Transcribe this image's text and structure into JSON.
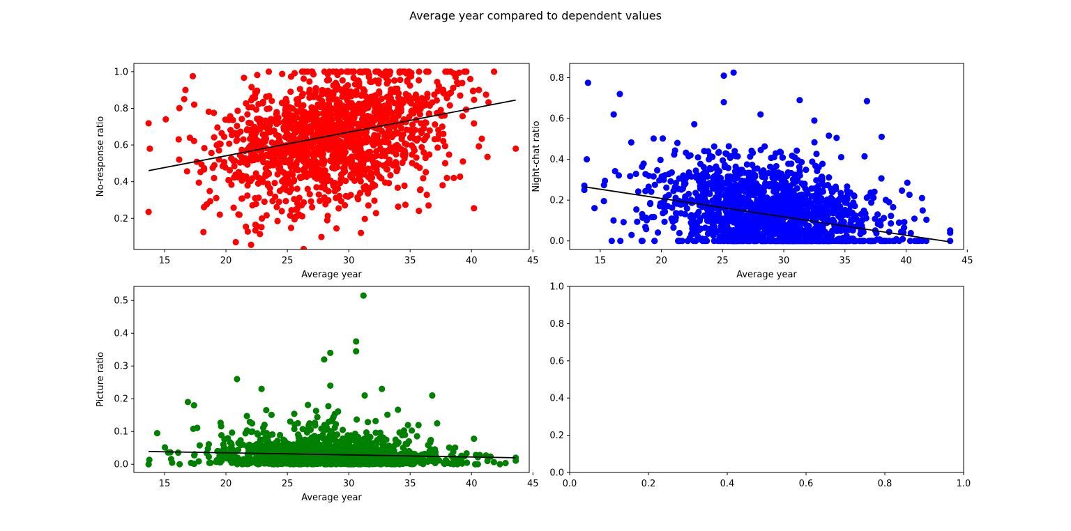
{
  "figure": {
    "suptitle": "Average year compared to dependent values"
  },
  "chart_data": [
    {
      "type": "scatter",
      "panel": "top-left",
      "title": "",
      "xlabel": "Average year",
      "ylabel": "No-response ratio",
      "xlim": [
        12.5,
        44.7
      ],
      "ylim": [
        0.03,
        1.045
      ],
      "xticks": [
        15,
        20,
        25,
        30,
        35,
        40,
        45
      ],
      "yticks": [
        0.2,
        0.4,
        0.6,
        0.8,
        1.0
      ],
      "point_color": "#ff0000",
      "trend_color": "#000000",
      "trend_line": {
        "x": [
          13.7,
          43.6
        ],
        "y": [
          0.46,
          0.845
        ]
      },
      "distribution": {
        "count": 1500,
        "x_mean": 28.5,
        "x_sd": 4.6,
        "x_min": 13.7,
        "x_max": 43.6,
        "y_min": 0.0,
        "y_max": 1.0,
        "noise_sd": 0.18,
        "seed": 11
      },
      "points": [
        [
          20.8,
          0.07
        ],
        [
          29.0,
          0.145
        ],
        [
          17.3,
          0.975
        ],
        [
          13.8,
          0.58
        ],
        [
          43.6,
          0.58
        ],
        [
          40.2,
          0.255
        ],
        [
          41.3,
          0.535
        ],
        [
          40.6,
          0.9
        ],
        [
          39.9,
          0.96
        ],
        [
          38.7,
          0.97
        ],
        [
          39.3,
          0.51
        ],
        [
          38.0,
          0.42
        ],
        [
          36.5,
          0.27
        ],
        [
          15.1,
          0.74
        ],
        [
          16.6,
          0.85
        ],
        [
          16.7,
          0.9
        ],
        [
          26.2,
          1.0
        ],
        [
          29.9,
          1.0
        ],
        [
          33.0,
          1.0
        ],
        [
          31.6,
          0.27
        ],
        [
          22.4,
          0.165
        ],
        [
          24.2,
          0.185
        ],
        [
          19.5,
          0.22
        ]
      ]
    },
    {
      "type": "scatter",
      "panel": "top-right",
      "title": "",
      "xlabel": "Average year",
      "ylabel": "Night-chat ratio",
      "xlim": [
        12.5,
        44.7
      ],
      "ylim": [
        -0.042,
        0.87
      ],
      "xticks": [
        15,
        20,
        25,
        30,
        35,
        40,
        45
      ],
      "yticks": [
        0.0,
        0.2,
        0.4,
        0.6,
        0.8
      ],
      "point_color": "#0000ff",
      "trend_color": "#000000",
      "trend_line": {
        "x": [
          13.7,
          43.6
        ],
        "y": [
          0.265,
          -0.005
        ]
      },
      "distribution": {
        "count": 1500,
        "x_mean": 28.5,
        "x_sd": 4.6,
        "x_min": 13.7,
        "x_max": 43.6,
        "y_min": 0.0,
        "y_max": 1.0,
        "noise_sd": 0.13,
        "seed": 23
      },
      "points": [
        [
          25.9,
          0.825
        ],
        [
          25.1,
          0.81
        ],
        [
          14.0,
          0.775
        ],
        [
          16.6,
          0.72
        ],
        [
          36.8,
          0.685
        ],
        [
          31.3,
          0.69
        ],
        [
          25.1,
          0.68
        ],
        [
          16.1,
          0.62
        ],
        [
          28.1,
          0.62
        ],
        [
          32.5,
          0.59
        ],
        [
          38.0,
          0.51
        ],
        [
          43.6,
          0.04
        ],
        [
          41.3,
          0.21
        ],
        [
          40.1,
          0.285
        ],
        [
          13.7,
          0.25
        ],
        [
          13.9,
          0.4
        ]
      ]
    },
    {
      "type": "scatter",
      "panel": "bottom-left",
      "title": "",
      "xlabel": "Average year",
      "ylabel": "Picture ratio",
      "xlim": [
        12.5,
        44.7
      ],
      "ylim": [
        -0.025,
        0.543
      ],
      "xticks": [
        15,
        20,
        25,
        30,
        35,
        40,
        45
      ],
      "yticks": [
        0.0,
        0.1,
        0.2,
        0.3,
        0.4,
        0.5
      ],
      "point_color": "#008000",
      "trend_color": "#000000",
      "trend_line": {
        "x": [
          13.7,
          43.6
        ],
        "y": [
          0.039,
          0.02
        ]
      },
      "distribution": {
        "count": 1500,
        "x_mean": 28.5,
        "x_sd": 4.6,
        "x_min": 13.7,
        "x_max": 43.6,
        "y_min": 0.0,
        "y_max": 1.0,
        "noise_sd": 0.0,
        "exp_mean": 0.03,
        "seed": 37
      },
      "points": [
        [
          31.2,
          0.515
        ],
        [
          30.6,
          0.375
        ],
        [
          30.6,
          0.345
        ],
        [
          28.5,
          0.34
        ],
        [
          28.0,
          0.32
        ],
        [
          20.9,
          0.26
        ],
        [
          28.5,
          0.24
        ],
        [
          22.9,
          0.23
        ],
        [
          32.7,
          0.23
        ],
        [
          36.8,
          0.21
        ],
        [
          31.3,
          0.21
        ],
        [
          16.9,
          0.19
        ],
        [
          17.4,
          0.18
        ],
        [
          37.2,
          0.125
        ],
        [
          40.2,
          0.078
        ],
        [
          43.6,
          0.02
        ],
        [
          41.3,
          0.01
        ],
        [
          40.3,
          0.0
        ],
        [
          13.7,
          0.0
        ],
        [
          14.4,
          0.095
        ]
      ]
    },
    {
      "type": "scatter",
      "panel": "bottom-right",
      "title": "",
      "xlabel": "",
      "ylabel": "",
      "xlim": [
        0,
        1
      ],
      "ylim": [
        0,
        1
      ],
      "xticks": [
        0.0,
        0.2,
        0.4,
        0.6,
        0.8,
        1.0
      ],
      "yticks": [
        0.0,
        0.2,
        0.4,
        0.6,
        0.8,
        1.0
      ],
      "point_color": "#000000",
      "trend_color": "#000000",
      "points": []
    }
  ]
}
